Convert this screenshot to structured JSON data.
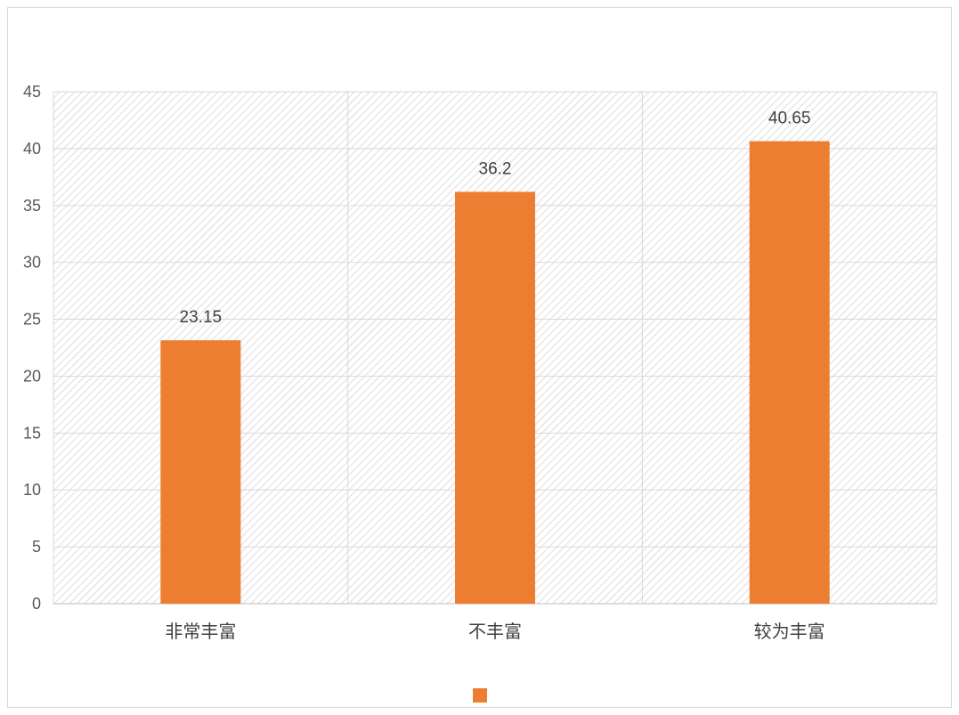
{
  "chart_data": {
    "type": "bar",
    "title": "",
    "xlabel": "",
    "ylabel": "",
    "categories": [
      "非常丰富",
      "不丰富",
      "较为丰富"
    ],
    "series": [
      {
        "values": [
          23.15,
          36.2,
          40.65
        ],
        "color": "#ED7D31"
      }
    ],
    "data_labels": [
      "23.15",
      "36.2",
      "40.65"
    ],
    "ylim": [
      0,
      45
    ],
    "yticks": [
      0,
      5,
      10,
      15,
      20,
      25,
      30,
      35,
      40,
      45
    ],
    "ytick_labels": [
      "0",
      "5",
      "10",
      "15",
      "20",
      "25",
      "30",
      "35",
      "40",
      "45"
    ],
    "grid": true,
    "plot_background": "hatched-gray",
    "legend_position": "bottom"
  }
}
